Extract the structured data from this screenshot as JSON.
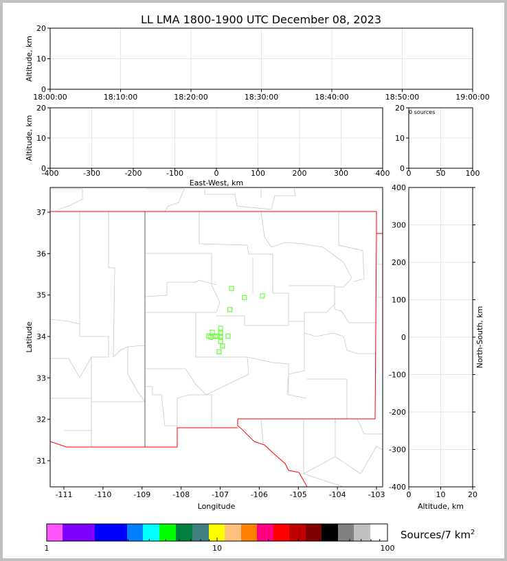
{
  "chart_data": [
    {
      "type": "scatter",
      "panel": "altitude-vs-time",
      "title": "LL LMA 1800-1900 UTC December 08, 2023",
      "ylabel": "Altitude, km",
      "ylim": [
        0,
        20
      ],
      "yticks": [
        "0",
        "10",
        "20"
      ],
      "xticks": [
        "18:00:00",
        "18:10:00",
        "18:20:00",
        "18:30:00",
        "18:40:00",
        "18:50:00",
        "19:00:00"
      ],
      "points": []
    },
    {
      "type": "scatter",
      "panel": "altitude-vs-east-west",
      "ylabel": "Altitude, km",
      "xlabel": "East-West, km",
      "xlim": [
        -400,
        400
      ],
      "ylim": [
        0,
        20
      ],
      "xticks": [
        "-400",
        "-300",
        "-200",
        "-100",
        "0",
        "100",
        "200",
        "300",
        "400"
      ],
      "yticks": [
        "0",
        "10",
        "20"
      ],
      "points": []
    },
    {
      "type": "histogram",
      "panel": "altitude-histogram",
      "annotation": "0 sources",
      "xlim": [
        0,
        100
      ],
      "ylim": [
        0,
        20
      ],
      "xticks": [
        "0",
        "50",
        "100"
      ],
      "yticks": [
        "0",
        "10",
        "20"
      ]
    },
    {
      "type": "scatter",
      "panel": "plan-view-map",
      "xlabel": "Longitude",
      "ylabel": "Latitude",
      "xlim": [
        -111.35,
        -102.85
      ],
      "ylim": [
        30.4,
        37.6
      ],
      "xticks": [
        "-111",
        "-110",
        "-109",
        "-108",
        "-107",
        "-106",
        "-105",
        "-104",
        "-103"
      ],
      "yticks": [
        "31",
        "32",
        "33",
        "34",
        "35",
        "36",
        "37"
      ],
      "marker_color": "#66ff33",
      "points": [
        {
          "lon": -106.71,
          "lat": 35.16
        },
        {
          "lon": -106.38,
          "lat": 34.94
        },
        {
          "lon": -105.92,
          "lat": 34.98
        },
        {
          "lon": -106.75,
          "lat": 34.65
        },
        {
          "lon": -106.99,
          "lat": 34.2
        },
        {
          "lon": -106.99,
          "lat": 34.08
        },
        {
          "lon": -107.2,
          "lat": 34.1
        },
        {
          "lon": -107.29,
          "lat": 34.01
        },
        {
          "lon": -107.24,
          "lat": 33.98
        },
        {
          "lon": -107.13,
          "lat": 34.01
        },
        {
          "lon": -107.08,
          "lat": 34.0
        },
        {
          "lon": -106.99,
          "lat": 34.0
        },
        {
          "lon": -106.8,
          "lat": 34.01
        },
        {
          "lon": -106.99,
          "lat": 33.88
        },
        {
          "lon": -106.94,
          "lat": 33.77
        },
        {
          "lon": -107.03,
          "lat": 33.63
        }
      ]
    },
    {
      "type": "scatter",
      "panel": "north-south-vs-altitude",
      "xlabel": "Altitude, km",
      "ylabel": "North-South, km",
      "xlim": [
        0,
        20
      ],
      "ylim": [
        -400,
        400
      ],
      "xticks": [
        "0",
        "10",
        "20"
      ],
      "yticks": [
        "400",
        "300",
        "200",
        "100",
        "0",
        "-100",
        "-200",
        "-300",
        "-400"
      ],
      "points": []
    }
  ],
  "colorbar": {
    "label": "Sources/7 km",
    "label_sup": "2",
    "ticks": [
      "1",
      "10",
      "100"
    ],
    "colors": [
      "#ff55ff",
      "#8000ff",
      "#0000ff",
      "#0080ff",
      "#00ffff",
      "#00ff00",
      "#008040",
      "#408080",
      "#ffff00",
      "#ffc080",
      "#ff8000",
      "#ff0080",
      "#ff0000",
      "#c00000",
      "#800000",
      "#000000",
      "#808080",
      "#c0c0c0",
      "#ffffff"
    ]
  }
}
